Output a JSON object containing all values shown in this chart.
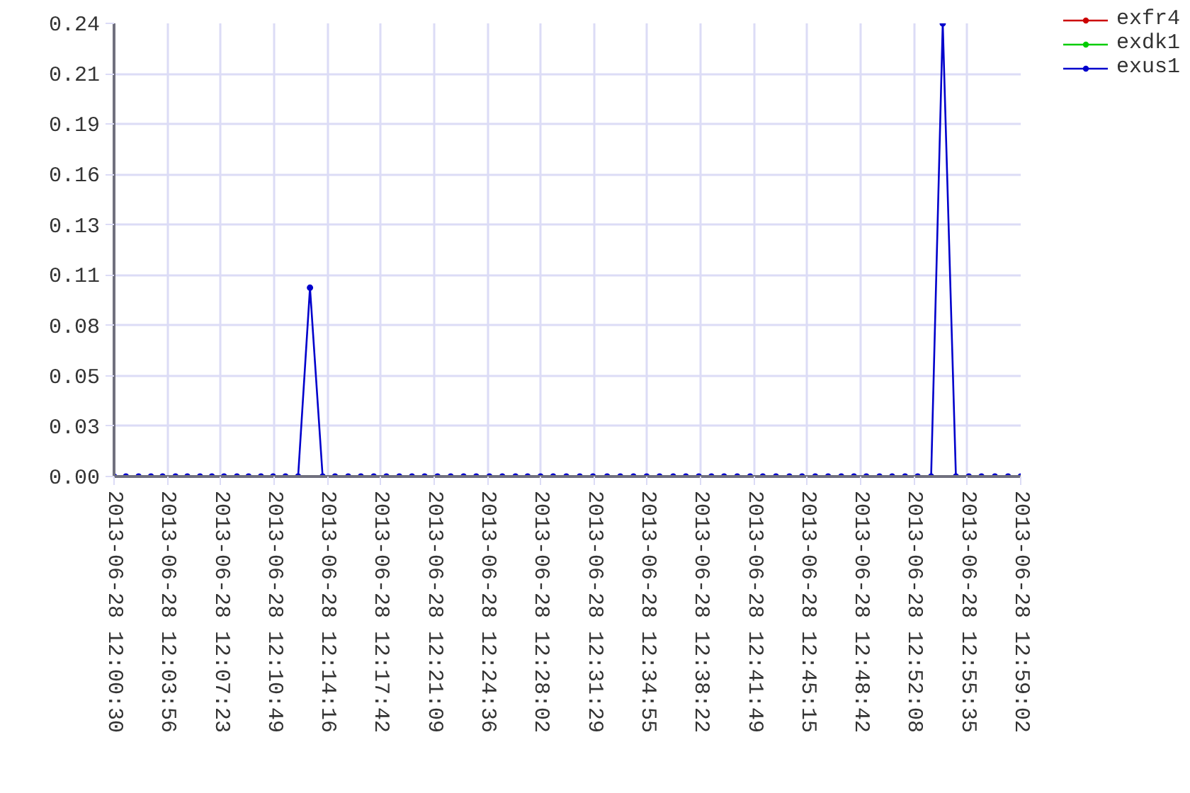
{
  "chart_data": {
    "type": "line",
    "x": [
      "2013-06-28T12:00:30",
      "2013-06-28T12:01:16",
      "2013-06-28T12:02:05",
      "2013-06-28T12:02:53",
      "2013-06-28T12:03:38",
      "2013-06-28T12:04:28",
      "2013-06-28T12:05:14",
      "2013-06-28T12:06:03",
      "2013-06-28T12:06:49",
      "2013-06-28T12:07:36",
      "2013-06-28T12:08:26",
      "2013-06-28T12:09:11",
      "2013-06-28T12:09:59",
      "2013-06-28T12:10:46",
      "2013-06-28T12:11:34",
      "2013-06-28T12:12:23",
      "2013-06-28T12:13:09",
      "2013-06-28T12:13:58",
      "2013-06-28T12:14:46",
      "2013-06-28T12:15:37",
      "2013-06-28T12:16:26",
      "2013-06-28T12:17:16",
      "2013-06-28T12:18:05",
      "2013-06-28T12:18:55",
      "2013-06-28T12:19:44",
      "2013-06-28T12:20:33",
      "2013-06-28T12:21:23",
      "2013-06-28T12:22:14",
      "2013-06-28T12:23:04",
      "2013-06-28T12:23:53",
      "2013-06-28T12:24:44",
      "2013-06-28T12:25:34",
      "2013-06-28T12:26:25",
      "2013-06-28T12:27:12",
      "2013-06-28T12:28:02",
      "2013-06-28T12:28:51",
      "2013-06-28T12:29:42",
      "2013-06-28T12:30:34",
      "2013-06-28T12:31:25",
      "2013-06-28T12:32:20",
      "2013-06-28T12:33:11",
      "2013-06-28T12:34:02",
      "2013-06-28T12:34:53",
      "2013-06-28T12:35:43",
      "2013-06-28T12:36:36",
      "2013-06-28T12:37:25",
      "2013-06-28T12:38:15",
      "2013-06-28T12:39:04",
      "2013-06-28T12:39:53",
      "2013-06-28T12:40:44",
      "2013-06-28T12:41:34",
      "2013-06-28T12:42:23",
      "2013-06-28T12:43:14",
      "2013-06-28T12:44:06",
      "2013-06-28T12:44:55",
      "2013-06-28T12:45:46",
      "2013-06-28T12:46:36",
      "2013-06-28T12:47:27",
      "2013-06-28T12:48:16",
      "2013-06-28T12:49:04",
      "2013-06-28T12:49:55",
      "2013-06-28T12:50:44",
      "2013-06-28T12:51:34",
      "2013-06-28T12:52:23",
      "2013-06-28T12:53:15",
      "2013-06-28T12:54:00",
      "2013-06-28T12:54:51",
      "2013-06-28T12:55:41",
      "2013-06-28T12:56:30",
      "2013-06-28T12:57:22",
      "2013-06-28T12:58:13",
      "2013-06-28T12:59:02"
    ],
    "series": [
      {
        "name": "exfr4",
        "color": "#cc0000",
        "values": [
          null,
          null,
          null,
          null,
          null,
          null,
          null,
          null,
          null,
          null,
          null,
          null,
          null,
          null,
          null,
          null,
          null,
          null,
          null,
          null,
          null,
          null,
          null,
          null,
          null,
          null,
          null,
          null,
          null,
          null,
          null,
          null,
          null,
          null,
          null,
          null,
          null,
          null,
          null,
          null,
          null,
          null,
          null,
          null,
          null,
          null,
          null,
          null,
          null,
          null,
          null,
          null,
          null,
          null,
          null,
          null,
          null,
          null,
          null,
          null,
          null,
          null,
          null,
          null,
          null,
          null,
          null,
          null,
          null,
          null,
          null,
          null
        ]
      },
      {
        "name": "exdk1",
        "color": "#00cc00",
        "values": [
          null,
          null,
          null,
          null,
          null,
          null,
          null,
          null,
          null,
          null,
          null,
          null,
          null,
          null,
          null,
          null,
          null,
          null,
          null,
          null,
          null,
          null,
          null,
          null,
          null,
          null,
          null,
          null,
          null,
          null,
          null,
          null,
          null,
          null,
          null,
          null,
          null,
          null,
          null,
          null,
          null,
          null,
          null,
          null,
          null,
          null,
          null,
          null,
          null,
          null,
          null,
          null,
          null,
          null,
          null,
          null,
          null,
          null,
          null,
          null,
          null,
          null,
          null,
          null,
          null,
          null,
          null,
          null,
          null,
          null,
          null,
          null
        ]
      },
      {
        "name": "exus1",
        "color": "#0000cc",
        "values": [
          0,
          0,
          0,
          0,
          0,
          0,
          0,
          0,
          0,
          0,
          0,
          0,
          0,
          0,
          0,
          0,
          0.1,
          0,
          0,
          0,
          0,
          0,
          0,
          0,
          0,
          0,
          0,
          0,
          0,
          0,
          0,
          0,
          0,
          0,
          0,
          0,
          0,
          0,
          0,
          0,
          0,
          0,
          0,
          0,
          0,
          0,
          0,
          0,
          0,
          0,
          0,
          0,
          0,
          0,
          0,
          0,
          0,
          0,
          0,
          0,
          0,
          0,
          0,
          0,
          0,
          0.24,
          0,
          0,
          0,
          0,
          0,
          0
        ]
      }
    ],
    "xlim": [
      "2013-06-28T12:00:30",
      "2013-06-28T12:59:02"
    ],
    "xticks": [
      {
        "value": "2013-06-28T12:00:30",
        "label": "2013-06-28 12:00:30"
      },
      {
        "value": "2013-06-28T12:03:56",
        "label": "2013-06-28 12:03:56"
      },
      {
        "value": "2013-06-28T12:07:23",
        "label": "2013-06-28 12:07:23"
      },
      {
        "value": "2013-06-28T12:10:49",
        "label": "2013-06-28 12:10:49"
      },
      {
        "value": "2013-06-28T12:14:16",
        "label": "2013-06-28 12:14:16"
      },
      {
        "value": "2013-06-28T12:17:42",
        "label": "2013-06-28 12:17:42"
      },
      {
        "value": "2013-06-28T12:21:09",
        "label": "2013-06-28 12:21:09"
      },
      {
        "value": "2013-06-28T12:24:36",
        "label": "2013-06-28 12:24:36"
      },
      {
        "value": "2013-06-28T12:28:02",
        "label": "2013-06-28 12:28:02"
      },
      {
        "value": "2013-06-28T12:31:29",
        "label": "2013-06-28 12:31:29"
      },
      {
        "value": "2013-06-28T12:34:55",
        "label": "2013-06-28 12:34:55"
      },
      {
        "value": "2013-06-28T12:38:22",
        "label": "2013-06-28 12:38:22"
      },
      {
        "value": "2013-06-28T12:41:49",
        "label": "2013-06-28 12:41:49"
      },
      {
        "value": "2013-06-28T12:45:15",
        "label": "2013-06-28 12:45:15"
      },
      {
        "value": "2013-06-28T12:48:42",
        "label": "2013-06-28 12:48:42"
      },
      {
        "value": "2013-06-28T12:52:08",
        "label": "2013-06-28 12:52:08"
      },
      {
        "value": "2013-06-28T12:55:35",
        "label": "2013-06-28 12:55:35"
      },
      {
        "value": "2013-06-28T12:59:02",
        "label": "2013-06-28 12:59:02"
      }
    ],
    "ylim": [
      0,
      0.24
    ],
    "yticks": [
      {
        "value": 0,
        "label": "0.00"
      },
      {
        "value": 0.0267,
        "label": "0.03"
      },
      {
        "value": 0.0533,
        "label": "0.05"
      },
      0.08,
      {
        "value": 0.1067,
        "label": "0.11"
      },
      {
        "value": 0.1333,
        "label": "0.13"
      },
      0.16,
      {
        "value": 0.1867,
        "label": "0.19"
      },
      {
        "value": 0.2133,
        "label": "0.21"
      },
      0.24
    ],
    "grid": true,
    "legend": "top right",
    "marker": "circle",
    "line_style": "solid"
  }
}
